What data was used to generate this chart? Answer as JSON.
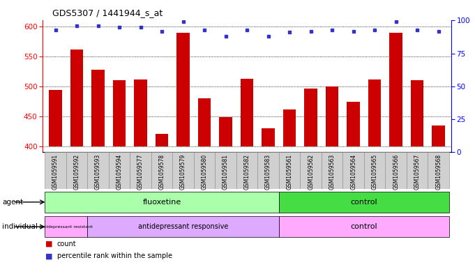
{
  "title": "GDS5307 / 1441944_s_at",
  "samples": [
    "GSM1059591",
    "GSM1059592",
    "GSM1059593",
    "GSM1059594",
    "GSM1059577",
    "GSM1059578",
    "GSM1059579",
    "GSM1059580",
    "GSM1059581",
    "GSM1059582",
    "GSM1059583",
    "GSM1059561",
    "GSM1059562",
    "GSM1059563",
    "GSM1059564",
    "GSM1059565",
    "GSM1059566",
    "GSM1059567",
    "GSM1059568"
  ],
  "counts": [
    494,
    562,
    528,
    510,
    511,
    421,
    590,
    480,
    448,
    513,
    430,
    461,
    496,
    500,
    474,
    511,
    590,
    510,
    435
  ],
  "percentiles": [
    93,
    96,
    96,
    95,
    95,
    92,
    99,
    93,
    88,
    93,
    88,
    91,
    92,
    93,
    92,
    93,
    99,
    93,
    92
  ],
  "ylim_left": [
    390,
    610
  ],
  "ylim_right": [
    0,
    100
  ],
  "yticks_left": [
    400,
    450,
    500,
    550,
    600
  ],
  "yticks_right": [
    0,
    25,
    50,
    75,
    100
  ],
  "bar_color": "#cc0000",
  "dot_color": "#3333cc",
  "fluoxetine_color": "#aaffaa",
  "control_agent_color": "#44dd44",
  "resistant_color": "#ffaaff",
  "responsive_color": "#ddaaff",
  "control_ind_color": "#ffaaff",
  "n_fluoxetine": 11,
  "n_resistant": 2,
  "n_responsive": 9,
  "n_control": 8
}
